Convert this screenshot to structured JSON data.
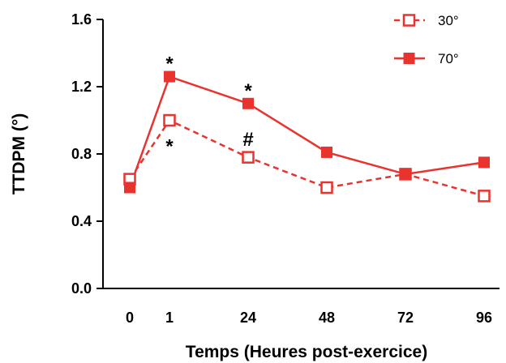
{
  "chart_data": {
    "type": "line",
    "categories": [
      "0",
      "1",
      "24",
      "48",
      "72",
      "96"
    ],
    "xlabel": "Temps (Heures post-exercice)",
    "ylabel": "TTDPM (°)",
    "ylim": [
      0.0,
      1.6
    ],
    "yticks": [
      "0.0",
      "0.4",
      "0.8",
      "1.2",
      "1.6"
    ],
    "grid": false,
    "legend_position": "top-right",
    "series": [
      {
        "name": "30°",
        "values": [
          0.65,
          1.0,
          0.78,
          0.6,
          0.68,
          0.55
        ],
        "color": "#e8332f",
        "line": "dashed",
        "marker": "open-square"
      },
      {
        "name": "70°",
        "values": [
          0.6,
          1.26,
          1.1,
          0.81,
          0.68,
          0.75
        ],
        "color": "#e8332f",
        "line": "solid",
        "marker": "filled-square"
      }
    ],
    "annotations": [
      {
        "text": "*",
        "category": "1",
        "series": "70°",
        "position": "above"
      },
      {
        "text": "*",
        "category": "1",
        "series": "30°",
        "position": "below"
      },
      {
        "text": "*",
        "category": "24",
        "series": "70°",
        "position": "above"
      },
      {
        "text": "#",
        "category": "24",
        "series": "30°",
        "position": "above"
      }
    ]
  }
}
